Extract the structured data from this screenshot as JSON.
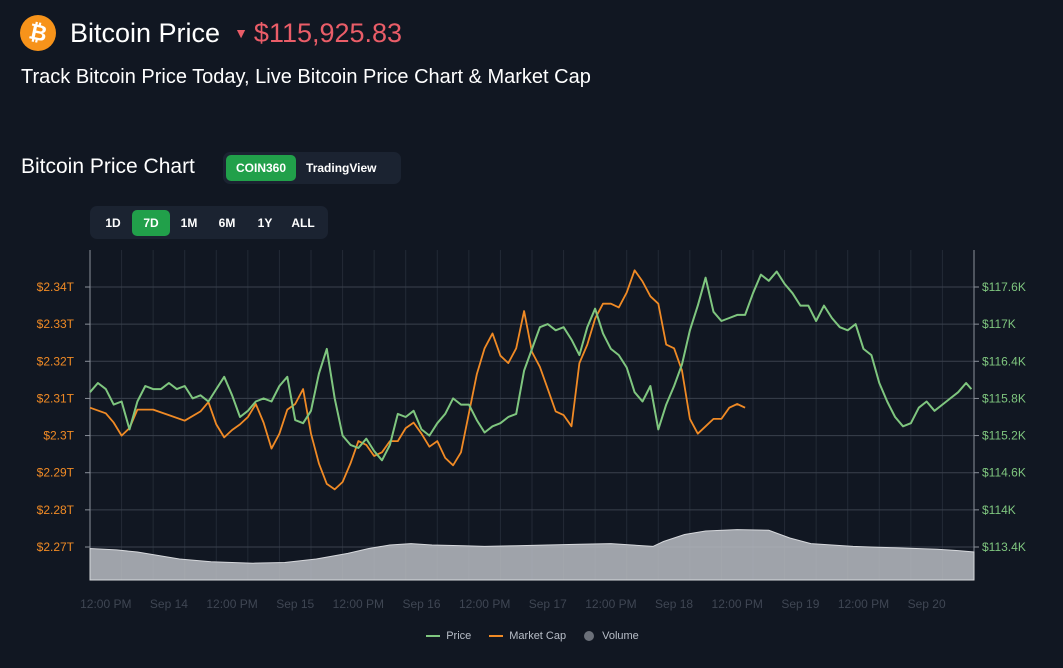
{
  "header": {
    "logo_symbol": "₿",
    "title": "Bitcoin Price",
    "trend_icon": "down-triangle-icon",
    "price": "$115,925.83",
    "price_color": "#ea5d68",
    "subtitle": "Track Bitcoin Price Today, Live Bitcoin Price Chart & Market Cap"
  },
  "chart_section": {
    "title": "Bitcoin Price Chart",
    "sources": [
      {
        "label": "COIN360",
        "active": true
      },
      {
        "label": "TradingView",
        "active": false
      }
    ],
    "ranges": [
      {
        "label": "1D",
        "active": false
      },
      {
        "label": "7D",
        "active": true
      },
      {
        "label": "1M",
        "active": false
      },
      {
        "label": "6M",
        "active": false
      },
      {
        "label": "1Y",
        "active": false
      },
      {
        "label": "ALL",
        "active": false
      }
    ]
  },
  "chart_data": {
    "type": "line",
    "colors": {
      "price": "#7fc67f",
      "market_cap": "#f08a25",
      "volume": "#b9bcc2",
      "accent": "#21a04a"
    },
    "x_ticks": [
      {
        "label": "12:00 PM",
        "t": 0
      },
      {
        "label": "Sep 14",
        "t": 12
      },
      {
        "label": "12:00 PM",
        "t": 24
      },
      {
        "label": "Sep 15",
        "t": 36
      },
      {
        "label": "12:00 PM",
        "t": 48
      },
      {
        "label": "Sep 16",
        "t": 60
      },
      {
        "label": "12:00 PM",
        "t": 72
      },
      {
        "label": "Sep 17",
        "t": 84
      },
      {
        "label": "12:00 PM",
        "t": 96
      },
      {
        "label": "Sep 18",
        "t": 108
      },
      {
        "label": "12:00 PM",
        "t": 120
      },
      {
        "label": "Sep 19",
        "t": 132
      },
      {
        "label": "12:00 PM",
        "t": 144
      },
      {
        "label": "Sep 20",
        "t": 156
      }
    ],
    "x_range": [
      -3,
      165
    ],
    "left_axis": {
      "ticks": [
        "$2.34T",
        "$2.33T",
        "$2.32T",
        "$2.31T",
        "$2.3T",
        "$2.29T",
        "$2.28T",
        "$2.27T"
      ],
      "range_trillions": [
        2.2655,
        2.3445
      ]
    },
    "right_axis": {
      "ticks": [
        "$117.6K",
        "$117K",
        "$116.4K",
        "$115.8K",
        "$115.2K",
        "$114.6K",
        "$114K",
        "$113.4K"
      ],
      "range_k": [
        113.4,
        117.6
      ]
    },
    "series": [
      {
        "name": "Price",
        "axis": "right",
        "points": [
          [
            -3,
            115.9
          ],
          [
            -1.5,
            116.05
          ],
          [
            0,
            115.95
          ],
          [
            1.5,
            115.7
          ],
          [
            3,
            115.75
          ],
          [
            4.5,
            115.3
          ],
          [
            6,
            115.75
          ],
          [
            7.5,
            116.0
          ],
          [
            9,
            115.95
          ],
          [
            10.5,
            115.95
          ],
          [
            12,
            116.05
          ],
          [
            13.5,
            115.95
          ],
          [
            15,
            116.0
          ],
          [
            16.5,
            115.8
          ],
          [
            18,
            115.85
          ],
          [
            19.5,
            115.75
          ],
          [
            21,
            115.95
          ],
          [
            22.5,
            116.15
          ],
          [
            24,
            115.85
          ],
          [
            25.5,
            115.5
          ],
          [
            27,
            115.6
          ],
          [
            28.5,
            115.75
          ],
          [
            30,
            115.8
          ],
          [
            31.5,
            115.75
          ],
          [
            33,
            116.0
          ],
          [
            34.5,
            116.15
          ],
          [
            36,
            115.45
          ],
          [
            37.5,
            115.4
          ],
          [
            39,
            115.6
          ],
          [
            40.5,
            116.2
          ],
          [
            42,
            116.6
          ],
          [
            43.5,
            115.8
          ],
          [
            45,
            115.2
          ],
          [
            46.5,
            115.05
          ],
          [
            48,
            115.0
          ],
          [
            49.5,
            115.15
          ],
          [
            51,
            114.95
          ],
          [
            52.5,
            114.8
          ],
          [
            54,
            115.05
          ],
          [
            55.5,
            115.55
          ],
          [
            57,
            115.5
          ],
          [
            58.5,
            115.6
          ],
          [
            60,
            115.3
          ],
          [
            61.5,
            115.2
          ],
          [
            63,
            115.4
          ],
          [
            64.5,
            115.55
          ],
          [
            66,
            115.8
          ],
          [
            67.5,
            115.7
          ],
          [
            69,
            115.7
          ],
          [
            70.5,
            115.45
          ],
          [
            72,
            115.25
          ],
          [
            73.5,
            115.35
          ],
          [
            75,
            115.4
          ],
          [
            76.5,
            115.5
          ],
          [
            78,
            115.55
          ],
          [
            79.5,
            116.25
          ],
          [
            81,
            116.6
          ],
          [
            82.5,
            116.95
          ],
          [
            84,
            117.0
          ],
          [
            85.5,
            116.9
          ],
          [
            87,
            116.95
          ],
          [
            88.5,
            116.75
          ],
          [
            90,
            116.5
          ],
          [
            91.5,
            116.95
          ],
          [
            93,
            117.25
          ],
          [
            94.5,
            116.85
          ],
          [
            96,
            116.6
          ],
          [
            97.5,
            116.5
          ],
          [
            99,
            116.3
          ],
          [
            100.5,
            115.9
          ],
          [
            102,
            115.75
          ],
          [
            103.5,
            116.0
          ],
          [
            105,
            115.3
          ],
          [
            106.5,
            115.7
          ],
          [
            108,
            116.0
          ],
          [
            109.5,
            116.35
          ],
          [
            111,
            116.9
          ],
          [
            112.5,
            117.3
          ],
          [
            114,
            117.75
          ],
          [
            115.5,
            117.2
          ],
          [
            117,
            117.05
          ],
          [
            118.5,
            117.1
          ],
          [
            120,
            117.15
          ],
          [
            121.5,
            117.15
          ],
          [
            123,
            117.5
          ],
          [
            124.5,
            117.8
          ],
          [
            126,
            117.7
          ],
          [
            127.5,
            117.85
          ],
          [
            129,
            117.65
          ],
          [
            130.5,
            117.5
          ],
          [
            132,
            117.3
          ],
          [
            133.5,
            117.3
          ],
          [
            135,
            117.05
          ],
          [
            136.5,
            117.3
          ],
          [
            138,
            117.1
          ],
          [
            139.5,
            116.95
          ],
          [
            141,
            116.9
          ],
          [
            142.5,
            117.0
          ],
          [
            144,
            116.6
          ],
          [
            145.5,
            116.5
          ],
          [
            147,
            116.05
          ],
          [
            148.5,
            115.75
          ],
          [
            150,
            115.5
          ],
          [
            151.5,
            115.35
          ],
          [
            153,
            115.4
          ],
          [
            154.5,
            115.65
          ],
          [
            156,
            115.75
          ],
          [
            157.5,
            115.6
          ],
          [
            159,
            115.7
          ],
          [
            160.5,
            115.8
          ],
          [
            162,
            115.9
          ],
          [
            163.5,
            116.05
          ],
          [
            164.5,
            115.95
          ]
        ]
      },
      {
        "name": "Market Cap",
        "axis": "left",
        "points": [
          [
            -3,
            2.3075
          ],
          [
            0,
            2.306
          ],
          [
            1.5,
            2.3035
          ],
          [
            3,
            2.3
          ],
          [
            4.5,
            2.302
          ],
          [
            6,
            2.307
          ],
          [
            9,
            2.307
          ],
          [
            12,
            2.3055
          ],
          [
            15,
            2.304
          ],
          [
            18,
            2.3065
          ],
          [
            19.5,
            2.309
          ],
          [
            21,
            2.303
          ],
          [
            22.5,
            2.2995
          ],
          [
            24,
            2.3015
          ],
          [
            25.5,
            2.303
          ],
          [
            27,
            2.305
          ],
          [
            28.5,
            2.3085
          ],
          [
            30,
            2.3035
          ],
          [
            31.5,
            2.2965
          ],
          [
            33,
            2.3005
          ],
          [
            34.5,
            2.307
          ],
          [
            36,
            2.3085
          ],
          [
            37.5,
            2.3125
          ],
          [
            39,
            2.3005
          ],
          [
            40.5,
            2.2925
          ],
          [
            42,
            2.287
          ],
          [
            43.5,
            2.2855
          ],
          [
            45,
            2.2875
          ],
          [
            46.5,
            2.2925
          ],
          [
            48,
            2.2985
          ],
          [
            49.5,
            2.2975
          ],
          [
            51,
            2.2945
          ],
          [
            52.5,
            2.2955
          ],
          [
            54,
            2.2985
          ],
          [
            55.5,
            2.2985
          ],
          [
            57,
            2.302
          ],
          [
            58.5,
            2.3035
          ],
          [
            60,
            2.3005
          ],
          [
            61.5,
            2.297
          ],
          [
            63,
            2.2985
          ],
          [
            64.5,
            2.294
          ],
          [
            66,
            2.292
          ],
          [
            67.5,
            2.2955
          ],
          [
            69,
            2.306
          ],
          [
            70.5,
            2.3165
          ],
          [
            72,
            2.3235
          ],
          [
            73.5,
            2.3275
          ],
          [
            75,
            2.3215
          ],
          [
            76.5,
            2.3195
          ],
          [
            78,
            2.3235
          ],
          [
            79.5,
            2.3335
          ],
          [
            81,
            2.3225
          ],
          [
            82.5,
            2.3185
          ],
          [
            84,
            2.3125
          ],
          [
            85.5,
            2.3065
          ],
          [
            87,
            2.3055
          ],
          [
            88.5,
            2.3025
          ],
          [
            90,
            2.3195
          ],
          [
            91.5,
            2.3245
          ],
          [
            93,
            2.3315
          ],
          [
            94.5,
            2.3355
          ],
          [
            96,
            2.3355
          ],
          [
            97.5,
            2.3345
          ],
          [
            99,
            2.3385
          ],
          [
            100.5,
            2.3445
          ],
          [
            102,
            2.3415
          ],
          [
            103.5,
            2.3375
          ],
          [
            105,
            2.3355
          ],
          [
            106.5,
            2.3245
          ],
          [
            108,
            2.3235
          ],
          [
            109.5,
            2.3175
          ],
          [
            111,
            2.3045
          ],
          [
            112.5,
            2.3005
          ],
          [
            114,
            2.3025
          ],
          [
            115.5,
            2.3045
          ],
          [
            117,
            2.3045
          ],
          [
            118.5,
            2.3075
          ],
          [
            120,
            2.3085
          ],
          [
            121.5,
            2.3075
          ]
        ]
      },
      {
        "name": "Volume",
        "axis": "none",
        "points": [
          [
            -3,
            0.45
          ],
          [
            2,
            0.43
          ],
          [
            6,
            0.4
          ],
          [
            10,
            0.35
          ],
          [
            14,
            0.3
          ],
          [
            20,
            0.26
          ],
          [
            28,
            0.24
          ],
          [
            34,
            0.25
          ],
          [
            40,
            0.3
          ],
          [
            46,
            0.38
          ],
          [
            50,
            0.45
          ],
          [
            54,
            0.5
          ],
          [
            58,
            0.52
          ],
          [
            62,
            0.5
          ],
          [
            68,
            0.49
          ],
          [
            72,
            0.48
          ],
          [
            78,
            0.49
          ],
          [
            84,
            0.5
          ],
          [
            90,
            0.51
          ],
          [
            96,
            0.52
          ],
          [
            100,
            0.5
          ],
          [
            104,
            0.48
          ],
          [
            106,
            0.55
          ],
          [
            110,
            0.65
          ],
          [
            114,
            0.7
          ],
          [
            120,
            0.72
          ],
          [
            126,
            0.71
          ],
          [
            130,
            0.6
          ],
          [
            134,
            0.52
          ],
          [
            138,
            0.5
          ],
          [
            142,
            0.48
          ],
          [
            146,
            0.47
          ],
          [
            150,
            0.46
          ],
          [
            154,
            0.45
          ],
          [
            158,
            0.44
          ],
          [
            162,
            0.42
          ],
          [
            165,
            0.4
          ]
        ]
      }
    ]
  },
  "legend": [
    {
      "label": "Price",
      "color": "#7fc67f",
      "icon": "line-swatch-icon"
    },
    {
      "label": "Market Cap",
      "color": "#f08a25",
      "icon": "line-swatch-icon"
    },
    {
      "label": "Volume",
      "color": "#6b7079",
      "icon": "dot-swatch-icon"
    }
  ]
}
